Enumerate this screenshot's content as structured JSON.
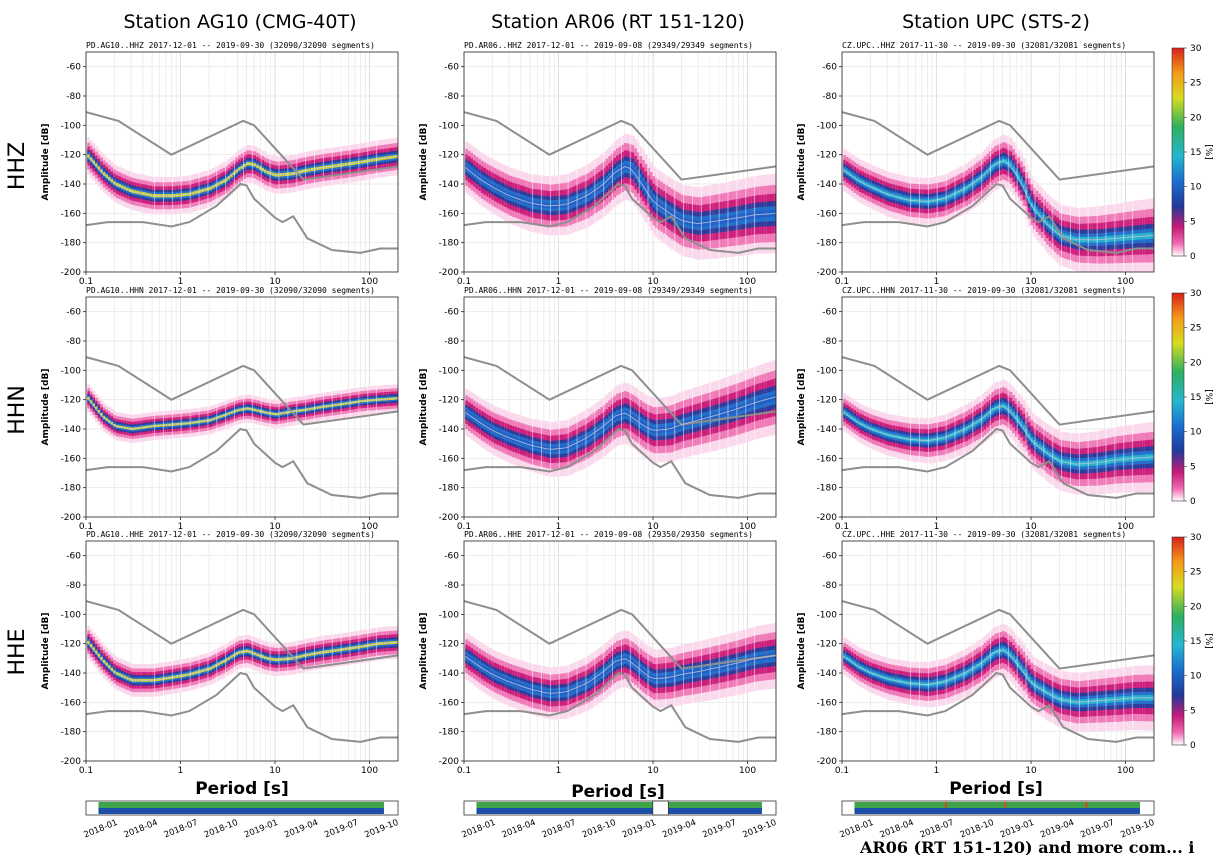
{
  "figure": {
    "column_titles": [
      "Station AG10 (CMG-40T)",
      "Station AR06 (RT 151-120)",
      "Station UPC (STS-2)"
    ],
    "row_labels": [
      "HHZ",
      "HHN",
      "HHE"
    ],
    "xlabel": "Period [s]",
    "colorbar_unit": "[%]",
    "colorbar_ticks": [
      "0",
      "5",
      "10",
      "15",
      "20",
      "25",
      "30"
    ],
    "date_labels": [
      "2018-01",
      "2018-04",
      "2018-07",
      "2018-10",
      "2019-01",
      "2019-04",
      "2019-07",
      "2019-10"
    ],
    "caption_fragment": "AR06 (RT 151-120) and more com... i"
  },
  "chart_data": [
    {
      "type": "heatmap",
      "title": "PD.AG10..HHZ   2017-12-01 -- 2019-09-30   (32090/32090 segments)",
      "xlabel": "",
      "ylabel": "Amplitude [dB]",
      "xscale": "log",
      "xlim": [
        0.1,
        200
      ],
      "ylim": [
        -200,
        -50
      ],
      "x_ticks": [
        "0.1",
        "1",
        "10",
        "100"
      ],
      "y_ticks": [
        "-200",
        "-180",
        "-160",
        "-140",
        "-120",
        "-100",
        "-80",
        "-60"
      ],
      "mode": {
        "x": [
          0.1,
          0.15,
          0.2,
          0.3,
          0.5,
          0.8,
          1.2,
          2,
          3,
          4,
          5,
          6,
          8,
          10,
          15,
          20,
          30,
          50,
          80,
          120,
          200
        ],
        "y": [
          -120,
          -133,
          -140,
          -145,
          -148,
          -148,
          -147,
          -143,
          -137,
          -130,
          -126,
          -127,
          -132,
          -134,
          -133,
          -131,
          -129,
          -127,
          -125,
          -123,
          -121
        ]
      },
      "spread": [
        8,
        8,
        8
      ],
      "peak_color": "yellow"
    },
    {
      "type": "heatmap",
      "title": "PD.AR06..HHZ   2017-12-01 -- 2019-09-08   (29349/29349 segments)",
      "xlabel": "",
      "ylabel": "Amplitude [dB]",
      "xscale": "log",
      "xlim": [
        0.1,
        200
      ],
      "ylim": [
        -200,
        -50
      ],
      "x_ticks": [
        "0.1",
        "1",
        "10",
        "100"
      ],
      "y_ticks": [
        "-200",
        "-180",
        "-160",
        "-140",
        "-120",
        "-100",
        "-80",
        "-60"
      ],
      "mode": {
        "x": [
          0.1,
          0.15,
          0.2,
          0.3,
          0.5,
          0.8,
          1.2,
          2,
          3,
          4,
          5,
          6,
          8,
          10,
          15,
          20,
          30,
          50,
          80,
          120,
          200
        ],
        "y": [
          -128,
          -137,
          -142,
          -148,
          -153,
          -155,
          -154,
          -148,
          -140,
          -132,
          -128,
          -130,
          -142,
          -152,
          -160,
          -165,
          -167,
          -165,
          -163,
          -161,
          -160
        ]
      },
      "spread": [
        11,
        14,
        17
      ],
      "peak_color": "blue"
    },
    {
      "type": "heatmap",
      "title": "CZ.UPC..HHZ   2017-11-30 -- 2019-09-30   (32081/32081 segments)",
      "xlabel": "",
      "ylabel": "Amplitude [dB]",
      "xscale": "log",
      "xlim": [
        0.1,
        200
      ],
      "ylim": [
        -200,
        -50
      ],
      "x_ticks": [
        "0.1",
        "1",
        "10",
        "100"
      ],
      "y_ticks": [
        "-200",
        "-180",
        "-160",
        "-140",
        "-120",
        "-100",
        "-80",
        "-60"
      ],
      "mode": {
        "x": [
          0.1,
          0.15,
          0.2,
          0.3,
          0.5,
          0.8,
          1.2,
          2,
          3,
          4,
          5,
          6,
          8,
          10,
          15,
          20,
          30,
          50,
          80,
          120,
          200
        ],
        "y": [
          -130,
          -138,
          -142,
          -147,
          -151,
          -152,
          -150,
          -143,
          -135,
          -127,
          -124,
          -127,
          -140,
          -155,
          -168,
          -175,
          -178,
          -178,
          -177,
          -176,
          -175
        ]
      },
      "spread": [
        9,
        11,
        16
      ],
      "peak_color": "cyan"
    },
    {
      "type": "heatmap",
      "title": "PD.AG10..HHN   2017-12-01 -- 2019-09-30   (32090/32090 segments)",
      "xlabel": "",
      "ylabel": "Amplitude [dB]",
      "xscale": "log",
      "xlim": [
        0.1,
        200
      ],
      "ylim": [
        -200,
        -50
      ],
      "x_ticks": [
        "0.1",
        "1",
        "10",
        "100"
      ],
      "y_ticks": [
        "-200",
        "-180",
        "-160",
        "-140",
        "-120",
        "-100",
        "-80",
        "-60"
      ],
      "mode": {
        "x": [
          0.1,
          0.15,
          0.2,
          0.3,
          0.5,
          0.8,
          1.2,
          2,
          3,
          4,
          5,
          6,
          8,
          10,
          15,
          20,
          30,
          50,
          80,
          120,
          200
        ],
        "y": [
          -118,
          -132,
          -138,
          -140,
          -138,
          -137,
          -136,
          -134,
          -130,
          -127,
          -126,
          -127,
          -129,
          -130,
          -128,
          -127,
          -125,
          -123,
          -121,
          -120,
          -119
        ]
      },
      "spread": [
        6,
        6,
        6
      ],
      "peak_color": "yellow"
    },
    {
      "type": "heatmap",
      "title": "PD.AR06..HHN   2017-12-01 -- 2019-09-08   (29349/29349 segments)",
      "xlabel": "",
      "ylabel": "Amplitude [dB]",
      "xscale": "log",
      "xlim": [
        0.1,
        200
      ],
      "ylim": [
        -200,
        -50
      ],
      "x_ticks": [
        "0.1",
        "1",
        "10",
        "100"
      ],
      "y_ticks": [
        "-200",
        "-180",
        "-160",
        "-140",
        "-120",
        "-100",
        "-80",
        "-60"
      ],
      "mode": {
        "x": [
          0.1,
          0.15,
          0.2,
          0.3,
          0.5,
          0.8,
          1.2,
          2,
          3,
          4,
          5,
          6,
          8,
          10,
          15,
          20,
          30,
          50,
          80,
          120,
          200
        ],
        "y": [
          -128,
          -136,
          -141,
          -146,
          -151,
          -154,
          -153,
          -146,
          -138,
          -131,
          -129,
          -132,
          -138,
          -141,
          -140,
          -137,
          -134,
          -130,
          -126,
          -122,
          -118
        ]
      },
      "spread": [
        10,
        13,
        16
      ],
      "peak_color": "blue"
    },
    {
      "type": "heatmap",
      "title": "CZ.UPC..HHN   2017-11-30 -- 2019-09-30   (32081/32081 segments)",
      "xlabel": "",
      "ylabel": "Amplitude [dB]",
      "xscale": "log",
      "xlim": [
        0.1,
        200
      ],
      "ylim": [
        -200,
        -50
      ],
      "x_ticks": [
        "0.1",
        "1",
        "10",
        "100"
      ],
      "y_ticks": [
        "-200",
        "-180",
        "-160",
        "-140",
        "-120",
        "-100",
        "-80",
        "-60"
      ],
      "mode": {
        "x": [
          0.1,
          0.15,
          0.2,
          0.3,
          0.5,
          0.8,
          1.2,
          2,
          3,
          4,
          5,
          6,
          8,
          10,
          15,
          20,
          30,
          50,
          80,
          120,
          200
        ],
        "y": [
          -128,
          -136,
          -140,
          -144,
          -147,
          -148,
          -146,
          -140,
          -133,
          -126,
          -124,
          -128,
          -138,
          -148,
          -157,
          -162,
          -164,
          -163,
          -161,
          -160,
          -159
        ]
      },
      "spread": [
        8,
        11,
        15
      ],
      "peak_color": "cyan"
    },
    {
      "type": "heatmap",
      "title": "PD.AG10..HHE   2017-12-01 -- 2019-09-30   (32090/32090 segments)",
      "xlabel": "",
      "ylabel": "Amplitude [dB]",
      "xscale": "log",
      "xlim": [
        0.1,
        200
      ],
      "ylim": [
        -200,
        -50
      ],
      "x_ticks": [
        "0.1",
        "1",
        "10",
        "100"
      ],
      "y_ticks": [
        "-200",
        "-180",
        "-160",
        "-140",
        "-120",
        "-100",
        "-80",
        "-60"
      ],
      "mode": {
        "x": [
          0.1,
          0.15,
          0.2,
          0.3,
          0.5,
          0.8,
          1.2,
          2,
          3,
          4,
          5,
          6,
          8,
          10,
          15,
          20,
          30,
          50,
          80,
          120,
          200
        ],
        "y": [
          -118,
          -132,
          -140,
          -145,
          -145,
          -143,
          -141,
          -137,
          -131,
          -126,
          -125,
          -127,
          -130,
          -131,
          -130,
          -128,
          -126,
          -124,
          -122,
          -120,
          -119
        ]
      },
      "spread": [
        7,
        7,
        7
      ],
      "peak_color": "yellow"
    },
    {
      "type": "heatmap",
      "title": "PD.AR06..HHE   2017-12-01 -- 2019-09-08   (29350/29350 segments)",
      "xlabel": "",
      "ylabel": "Amplitude [dB]",
      "xscale": "log",
      "xlim": [
        0.1,
        200
      ],
      "ylim": [
        -200,
        -50
      ],
      "x_ticks": [
        "0.1",
        "1",
        "10",
        "100"
      ],
      "y_ticks": [
        "-200",
        "-180",
        "-160",
        "-140",
        "-120",
        "-100",
        "-80",
        "-60"
      ],
      "mode": {
        "x": [
          0.1,
          0.15,
          0.2,
          0.3,
          0.5,
          0.8,
          1.2,
          2,
          3,
          4,
          5,
          6,
          8,
          10,
          15,
          20,
          30,
          50,
          80,
          120,
          200
        ],
        "y": [
          -128,
          -136,
          -141,
          -146,
          -151,
          -154,
          -153,
          -147,
          -139,
          -132,
          -130,
          -133,
          -140,
          -144,
          -143,
          -141,
          -139,
          -136,
          -133,
          -130,
          -128
        ]
      },
      "spread": [
        10,
        12,
        14
      ],
      "peak_color": "blue"
    },
    {
      "type": "heatmap",
      "title": "CZ.UPC..HHE   2017-11-30 -- 2019-09-30   (32081/32081 segments)",
      "xlabel": "",
      "ylabel": "Amplitude [dB]",
      "xscale": "log",
      "xlim": [
        0.1,
        200
      ],
      "ylim": [
        -200,
        -50
      ],
      "x_ticks": [
        "0.1",
        "1",
        "10",
        "100"
      ],
      "y_ticks": [
        "-200",
        "-180",
        "-160",
        "-140",
        "-120",
        "-100",
        "-80",
        "-60"
      ],
      "mode": {
        "x": [
          0.1,
          0.15,
          0.2,
          0.3,
          0.5,
          0.8,
          1.2,
          2,
          3,
          4,
          5,
          6,
          8,
          10,
          15,
          20,
          30,
          50,
          80,
          120,
          200
        ],
        "y": [
          -128,
          -136,
          -140,
          -144,
          -147,
          -148,
          -146,
          -140,
          -133,
          -126,
          -124,
          -128,
          -138,
          -147,
          -154,
          -158,
          -160,
          -159,
          -158,
          -157,
          -157
        ]
      },
      "spread": [
        8,
        11,
        14
      ],
      "peak_color": "cyan"
    }
  ],
  "reference_models": {
    "nhnm": {
      "x": [
        0.1,
        0.22,
        0.8,
        4.6,
        6,
        20,
        200
      ],
      "y": [
        -91,
        -97,
        -120,
        -97,
        -100,
        -137,
        -128
      ]
    },
    "nlnm": {
      "x": [
        0.1,
        0.17,
        0.4,
        0.8,
        1.24,
        2.4,
        4.3,
        5,
        6,
        10,
        12,
        15.6,
        22,
        40,
        80,
        130,
        200
      ],
      "y": [
        -168,
        -166,
        -166,
        -169,
        -166,
        -155,
        -140,
        -141,
        -150,
        -163,
        -166,
        -162,
        -177,
        -185,
        -187,
        -184,
        -184
      ]
    }
  }
}
